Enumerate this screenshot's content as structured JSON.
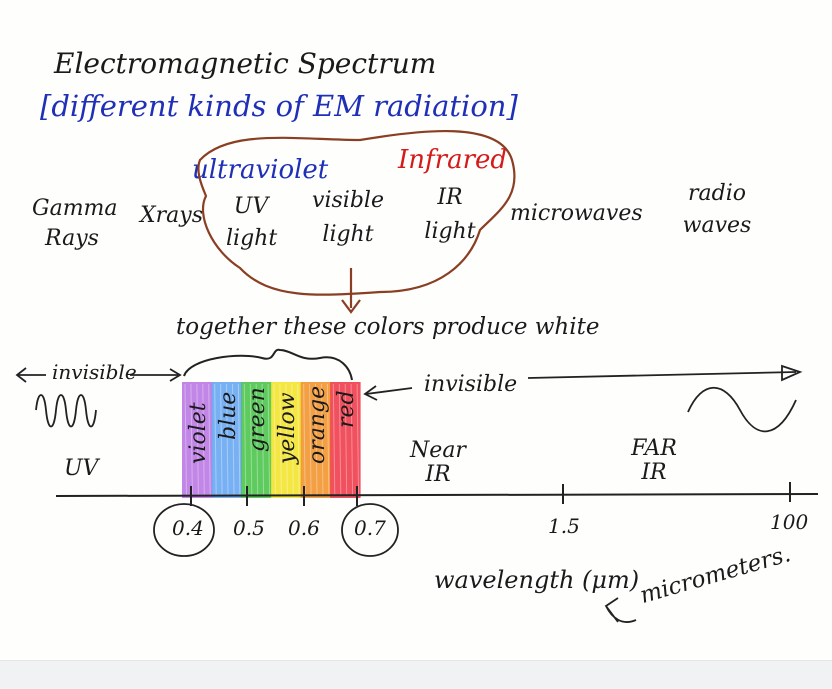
{
  "title": "Electromagnetic Spectrum",
  "subtitle": "[different kinds of EM radiation]",
  "group_labels": {
    "ultraviolet": "ultraviolet",
    "infrared": "Infrared"
  },
  "bands": {
    "gamma": [
      "Gamma",
      "Rays"
    ],
    "xrays": "Xrays",
    "uv_light": [
      "UV",
      "light"
    ],
    "visible_light": [
      "visible",
      "light"
    ],
    "ir_light": [
      "IR",
      "light"
    ],
    "microwaves": "microwaves",
    "radio": [
      "radio",
      "waves"
    ]
  },
  "note_white": "together these colors produce white",
  "invisible_left": "invisible",
  "invisible_right": "invisible",
  "colors": [
    {
      "name": "violet",
      "color": "#b36be0"
    },
    {
      "name": "blue",
      "color": "#5aa0f0"
    },
    {
      "name": "green",
      "color": "#3cbf3c"
    },
    {
      "name": "yellow",
      "color": "#f2e21a"
    },
    {
      "name": "orange",
      "color": "#f08a1a"
    },
    {
      "name": "red",
      "color": "#ee2a3a"
    }
  ],
  "region_labels": {
    "uv": "UV",
    "near_ir": [
      "Near",
      "IR"
    ],
    "far_ir": [
      "FAR",
      "IR"
    ]
  },
  "ticks": [
    "0.4",
    "0.5",
    "0.6",
    "0.7",
    "1.5",
    "100"
  ],
  "axis_label": "wavelength (μm)",
  "unit_note": "micrometers."
}
